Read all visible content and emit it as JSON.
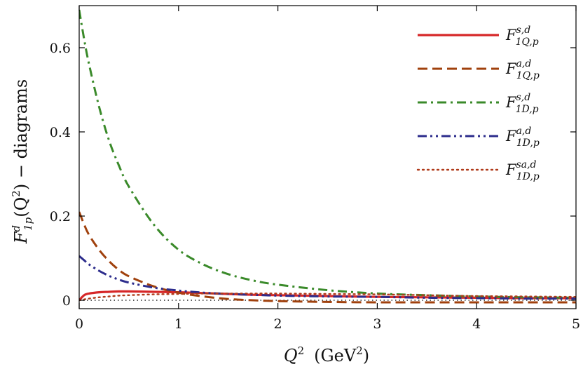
{
  "chart_data": {
    "type": "line",
    "title": "",
    "xlabel": {
      "main": "Q",
      "sup": "2",
      "unit_prefix": "(GeV",
      "unit_sup": "2",
      "unit_suffix": ")"
    },
    "ylabel": {
      "main": "F",
      "sup": "d",
      "sub": "1p",
      "arg_prefix": "(Q",
      "arg_sup": "2",
      "arg_suffix": ") − diagrams"
    },
    "xlim": [
      0,
      5
    ],
    "ylim": [
      -0.02,
      0.7
    ],
    "xticks": [
      0,
      1,
      2,
      3,
      4,
      5
    ],
    "xtick_labels": [
      "0",
      "1",
      "2",
      "3",
      "4",
      "5"
    ],
    "yticks": [
      0,
      0.2,
      0.4,
      0.6
    ],
    "ytick_labels": [
      "0",
      "0.2",
      "0.4",
      "0.6"
    ],
    "x": [
      0,
      0.05,
      0.1,
      0.2,
      0.3,
      0.4,
      0.5,
      0.75,
      1.0,
      1.25,
      1.5,
      1.75,
      2.0,
      2.5,
      3.0,
      3.5,
      4.0,
      4.5,
      5.0
    ],
    "series": [
      {
        "name": "F_{1Q,p}^{s,d}",
        "legend": {
          "main": "F",
          "sup": "s,d",
          "sub": "1Q,p"
        },
        "color": "#d62728",
        "style": "solid",
        "values": [
          0.0,
          0.012,
          0.016,
          0.019,
          0.02,
          0.021,
          0.021,
          0.02,
          0.019,
          0.017,
          0.015,
          0.013,
          0.012,
          0.01,
          0.008,
          0.007,
          0.006,
          0.005,
          0.005
        ]
      },
      {
        "name": "F_{1Q,p}^{a,d}",
        "legend": {
          "main": "F",
          "sup": "a,d",
          "sub": "1Q,p"
        },
        "color": "#a0410d",
        "style": "dashed",
        "values": [
          0.21,
          0.18,
          0.155,
          0.12,
          0.093,
          0.072,
          0.057,
          0.033,
          0.018,
          0.009,
          0.003,
          0.0,
          -0.002,
          -0.004,
          -0.005,
          -0.005,
          -0.005,
          -0.005,
          -0.005
        ]
      },
      {
        "name": "F_{1D,p}^{s,d}",
        "legend": {
          "main": "F",
          "sup": "s,d",
          "sub": "1D,p"
        },
        "color": "#3a8a2a",
        "style": "dashdot",
        "values": [
          0.69,
          0.62,
          0.56,
          0.46,
          0.38,
          0.32,
          0.27,
          0.18,
          0.12,
          0.085,
          0.062,
          0.047,
          0.037,
          0.024,
          0.016,
          0.012,
          0.009,
          0.007,
          0.006
        ]
      },
      {
        "name": "F_{1D,p}^{a,d}",
        "legend": {
          "main": "F",
          "sup": "a,d",
          "sub": "1D,p"
        },
        "color": "#2c2c8c",
        "style": "dashdotdot",
        "values": [
          0.105,
          0.095,
          0.085,
          0.07,
          0.058,
          0.049,
          0.042,
          0.03,
          0.023,
          0.018,
          0.015,
          0.013,
          0.011,
          0.009,
          0.008,
          0.006,
          0.005,
          0.004,
          0.004
        ]
      },
      {
        "name": "F_{1D,p}^{sa,d}",
        "legend": {
          "main": "F",
          "sup": "sa,d",
          "sub": "1D,p"
        },
        "color": "#b03a1a",
        "style": "dotted",
        "values": [
          0.0,
          0.002,
          0.004,
          0.007,
          0.009,
          0.011,
          0.012,
          0.014,
          0.015,
          0.016,
          0.016,
          0.016,
          0.016,
          0.015,
          0.014,
          0.012,
          0.01,
          0.009,
          0.008
        ]
      }
    ],
    "reference_line": {
      "y": 0,
      "style": "dotted",
      "color": "#222222"
    },
    "legend_position": "top-right",
    "grid": false
  }
}
